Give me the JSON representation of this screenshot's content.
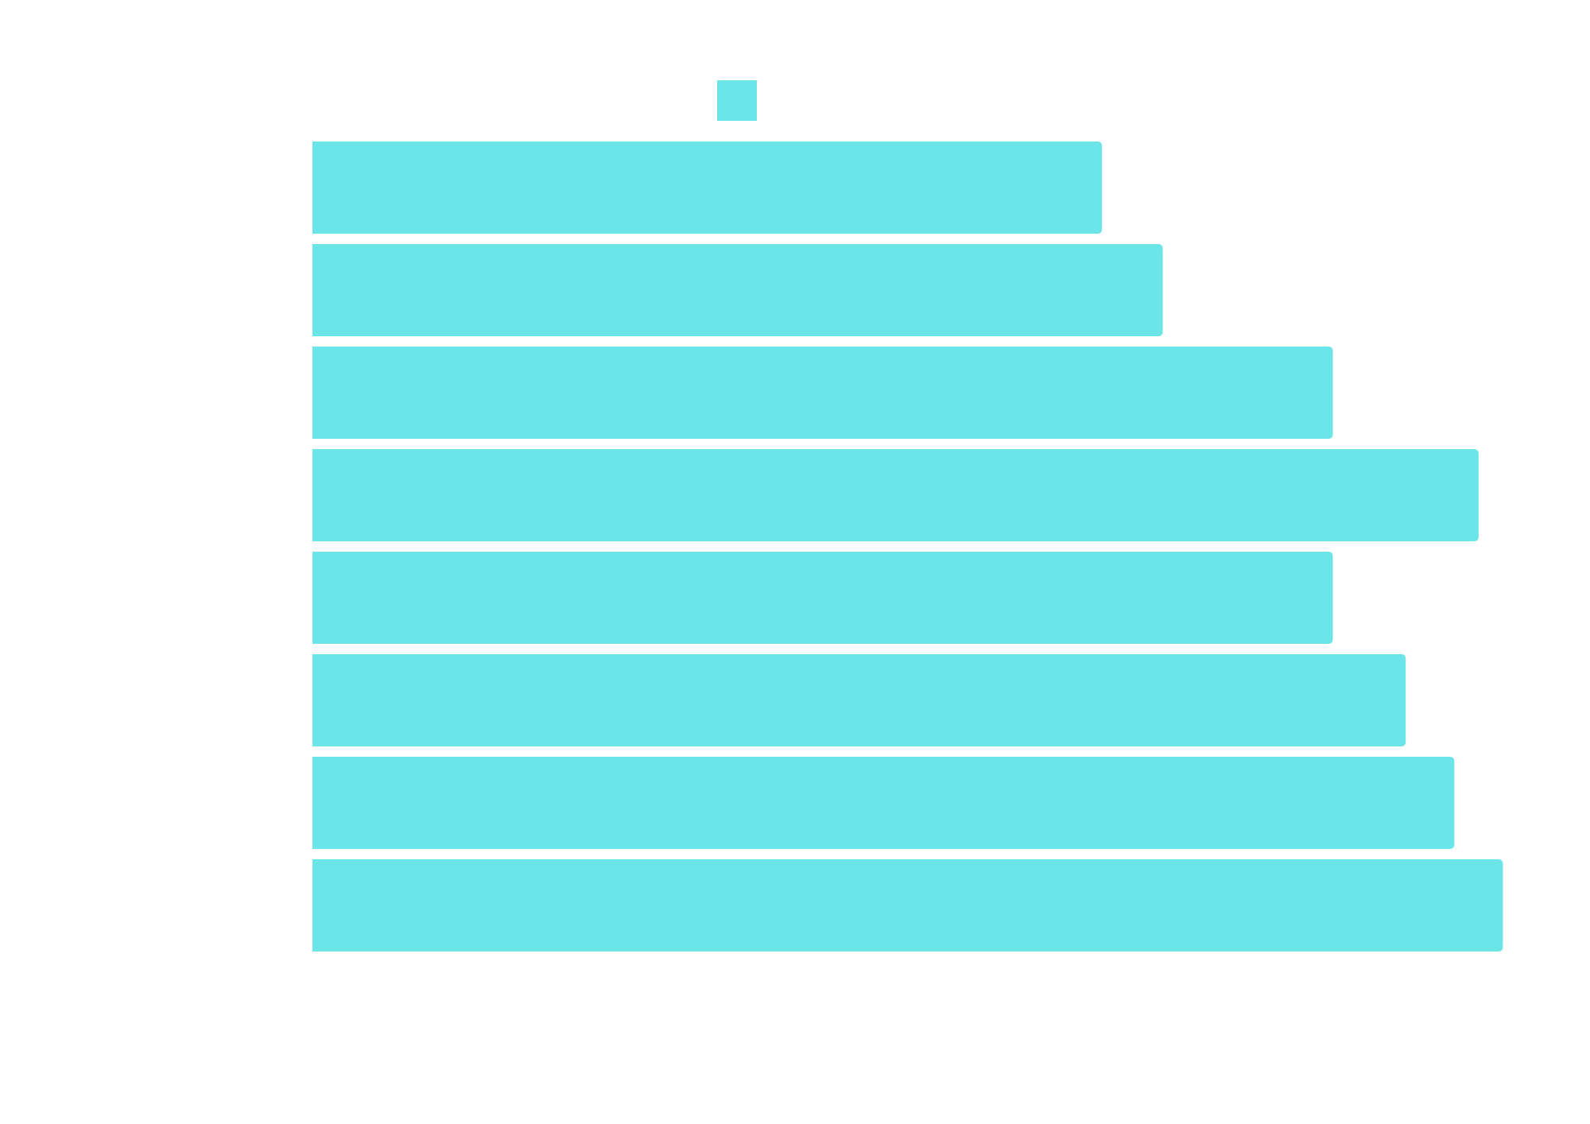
{
  "chart_data": {
    "type": "bar",
    "orientation": "horizontal",
    "categories": [
      "",
      "",
      "",
      "",
      "",
      "",
      "",
      ""
    ],
    "series": [
      {
        "values": [
          65,
          70,
          84,
          96,
          84,
          90,
          94,
          98
        ]
      }
    ],
    "xlim": [
      0,
      100
    ],
    "legend": "top-center",
    "grid": false,
    "colors": {
      "bar": "#6CE5E8"
    }
  }
}
